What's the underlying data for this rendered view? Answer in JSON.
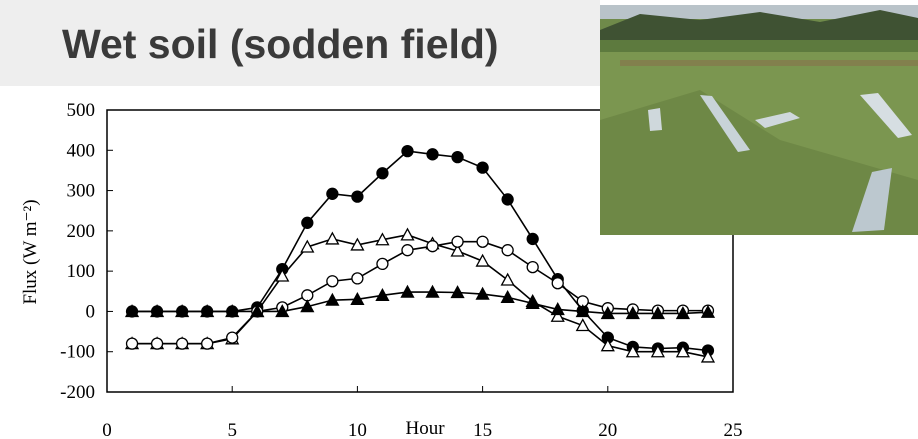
{
  "chart_data": {
    "type": "line",
    "title": "Wet soil (sodden field)",
    "x_label": "Hour",
    "y_label": "Flux (W m⁻²)",
    "x": [
      1,
      2,
      3,
      4,
      5,
      6,
      7,
      8,
      9,
      10,
      11,
      12,
      13,
      14,
      15,
      16,
      17,
      18,
      19,
      20,
      21,
      22,
      23,
      24
    ],
    "xlim": [
      0,
      25
    ],
    "xticks": [
      0,
      5,
      10,
      15,
      20,
      25
    ],
    "ylim": [
      -200,
      500
    ],
    "yticks": [
      -200,
      -100,
      0,
      100,
      200,
      300,
      400,
      500
    ],
    "color": "#000000",
    "series": [
      {
        "marker": "circle",
        "fill": "filled",
        "values": [
          0,
          0,
          0,
          0,
          0,
          10,
          105,
          220,
          292,
          285,
          343,
          398,
          390,
          383,
          357,
          278,
          180,
          80,
          2,
          -65,
          -88,
          -92,
          -90,
          -97
        ]
      },
      {
        "marker": "triangle",
        "fill": "open",
        "values": [
          -80,
          -80,
          -80,
          -80,
          -68,
          0,
          88,
          160,
          180,
          165,
          178,
          190,
          168,
          150,
          125,
          78,
          25,
          -12,
          -35,
          -85,
          -100,
          -100,
          -100,
          -113
        ]
      },
      {
        "marker": "circle",
        "fill": "open",
        "values": [
          -80,
          -80,
          -80,
          -80,
          -65,
          0,
          10,
          40,
          75,
          82,
          118,
          152,
          162,
          173,
          173,
          152,
          110,
          70,
          25,
          8,
          5,
          2,
          2,
          2
        ]
      },
      {
        "marker": "triangle",
        "fill": "filled",
        "values": [
          0,
          0,
          0,
          0,
          0,
          0,
          0,
          12,
          28,
          30,
          40,
          48,
          48,
          47,
          43,
          35,
          20,
          5,
          0,
          -5,
          -5,
          -5,
          -5,
          -2
        ]
      }
    ]
  }
}
